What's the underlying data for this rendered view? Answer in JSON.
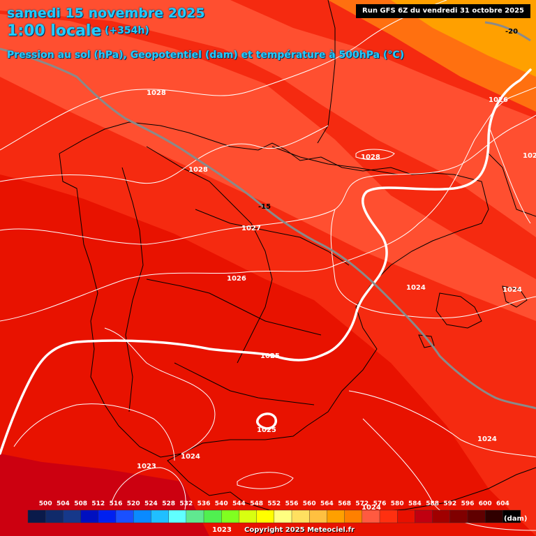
{
  "header": {
    "date": "samedi 15 novembre 2025",
    "time": "1:00 locale",
    "lead": "(+354h)",
    "subtitle": "Pression au sol (hPa), Geopotentiel (dam) et température à 500hPa (°C)",
    "run": "Run GFS 6Z du vendredi 31 octobre 2025"
  },
  "isobar_labels": [
    "1028",
    "1028",
    "1028",
    "1027",
    "1026",
    "1026",
    "1025",
    "1025",
    "1024",
    "1024",
    "1024",
    "1024",
    "1024",
    "1023",
    "1023",
    "1024",
    "1026",
    "1028",
    "1023"
  ],
  "isotherm_labels": [
    "-15",
    "-20"
  ],
  "legend": {
    "values": [
      "500",
      "504",
      "508",
      "512",
      "516",
      "520",
      "524",
      "528",
      "532",
      "536",
      "540",
      "544",
      "548",
      "552",
      "556",
      "560",
      "564",
      "568",
      "572",
      "576",
      "580",
      "584",
      "588",
      "592",
      "596",
      "600",
      "604"
    ],
    "colors": [
      "#0a1a4a",
      "#102a6a",
      "#16388a",
      "#0010c0",
      "#0020f0",
      "#1a50ff",
      "#0a8aff",
      "#20bfff",
      "#60ffff",
      "#60e890",
      "#50f050",
      "#80ff20",
      "#d8ff10",
      "#ffff00",
      "#ffff80",
      "#ffe060",
      "#ffc040",
      "#ffa000",
      "#ff8000",
      "#ff5a40",
      "#ff3010",
      "#e81000",
      "#c00010",
      "#a00000",
      "#800000",
      "#600000",
      "#300000",
      "#000000"
    ],
    "unit": "(dam)"
  },
  "copyright": "Copyright 2025 Meteociel.fr",
  "colors": {
    "band_596": "#cc0010",
    "band_584": "#e81200",
    "band_580": "#f52a10",
    "band_576": "#ff4f30",
    "band_572": "#ff7010",
    "band_568": "#ffa000",
    "isotherm": "#8a8a8a",
    "coast": "#000000"
  }
}
